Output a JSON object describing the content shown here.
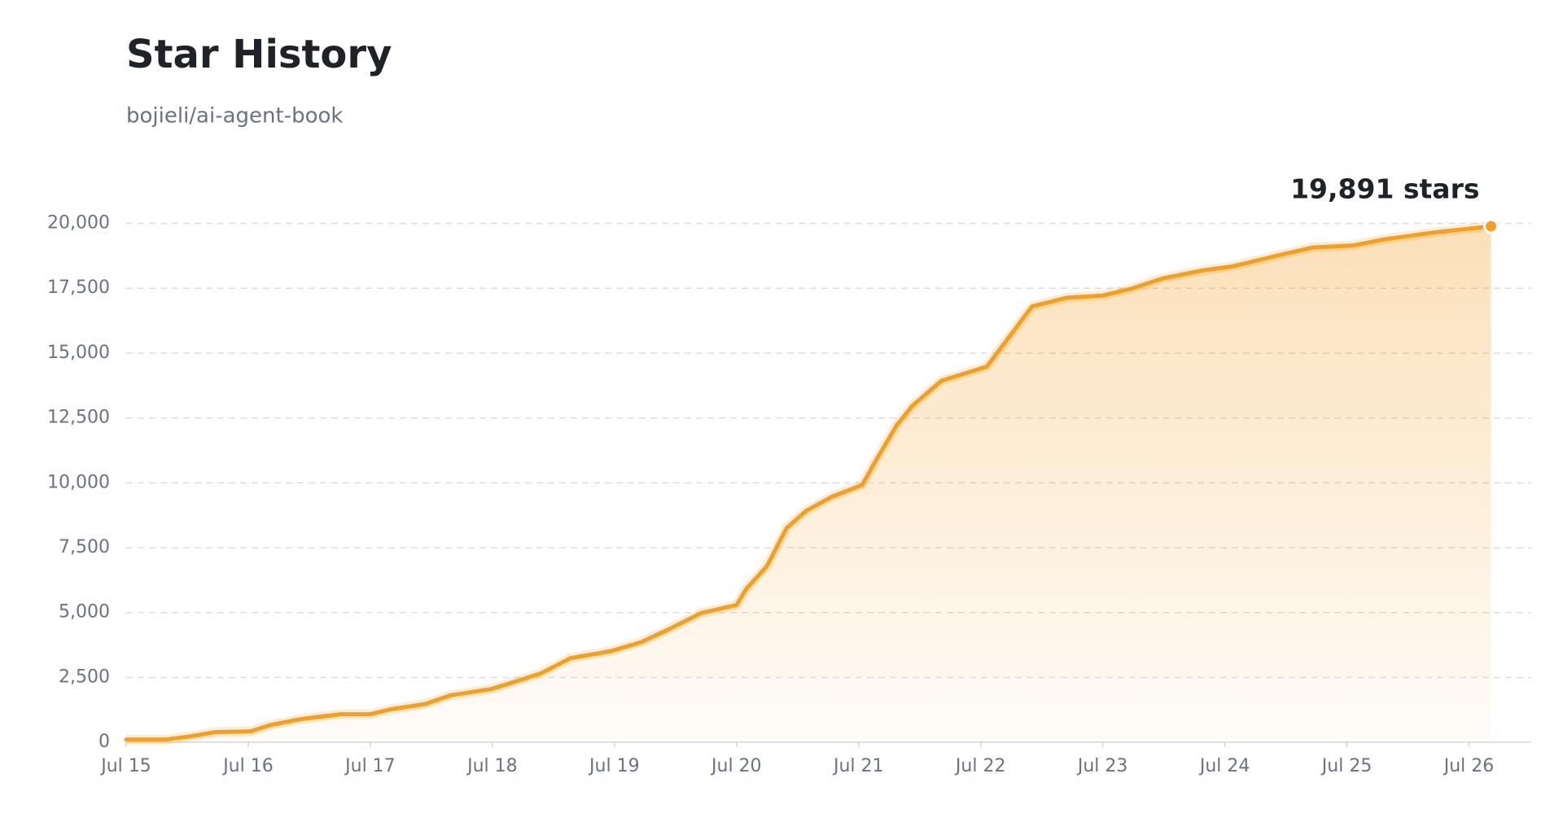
{
  "chart_data": {
    "type": "line",
    "title": "Star History",
    "subtitle": "bojieli/ai-agent-book",
    "annotation": "19,891 stars",
    "color": "#f29f24",
    "grid": true,
    "x": [
      15.0,
      15.32,
      15.53,
      15.73,
      16.02,
      16.18,
      16.43,
      16.76,
      17.0,
      17.17,
      17.45,
      17.66,
      17.99,
      18.15,
      18.4,
      18.64,
      18.97,
      19.22,
      19.43,
      19.71,
      20.0,
      20.08,
      20.25,
      20.41,
      20.57,
      20.78,
      21.03,
      21.15,
      21.31,
      21.44,
      21.68,
      22.05,
      22.18,
      22.42,
      22.71,
      23.0,
      23.24,
      23.49,
      23.82,
      24.06,
      24.43,
      24.72,
      25.05,
      25.3,
      25.71,
      25.95,
      26.18
    ],
    "values": [
      100,
      100,
      230,
      390,
      420,
      660,
      890,
      1080,
      1080,
      1270,
      1470,
      1810,
      2050,
      2280,
      2660,
      3240,
      3510,
      3860,
      4320,
      4980,
      5290,
      5910,
      6800,
      8260,
      8920,
      9460,
      9920,
      10930,
      12200,
      12970,
      13940,
      14480,
      15290,
      16800,
      17140,
      17220,
      17490,
      17880,
      18190,
      18340,
      18760,
      19070,
      19150,
      19380,
      19650,
      19770,
      19891
    ],
    "xlim": [
      15,
      26.51
    ],
    "xticks": [
      {
        "value": 15,
        "label": "Jul 15"
      },
      {
        "value": 16,
        "label": "Jul 16"
      },
      {
        "value": 17,
        "label": "Jul 17"
      },
      {
        "value": 18,
        "label": "Jul 18"
      },
      {
        "value": 19,
        "label": "Jul 19"
      },
      {
        "value": 20,
        "label": "Jul 20"
      },
      {
        "value": 21,
        "label": "Jul 21"
      },
      {
        "value": 22,
        "label": "Jul 22"
      },
      {
        "value": 23,
        "label": "Jul 23"
      },
      {
        "value": 24,
        "label": "Jul 24"
      },
      {
        "value": 25,
        "label": "Jul 25"
      },
      {
        "value": 26,
        "label": "Jul 26"
      }
    ],
    "ylim": [
      0,
      20000
    ],
    "yticks": [
      0,
      {
        "value": 2500,
        "label": "2,500"
      },
      {
        "value": 5000,
        "label": "5,000"
      },
      {
        "value": 7500,
        "label": "7,500"
      },
      {
        "value": 10000,
        "label": "10,000"
      },
      {
        "value": 12500,
        "label": "12,500"
      },
      {
        "value": 15000,
        "label": "15,000"
      },
      {
        "value": 17500,
        "label": "17,500"
      },
      {
        "value": 20000,
        "label": "20,000"
      }
    ]
  }
}
